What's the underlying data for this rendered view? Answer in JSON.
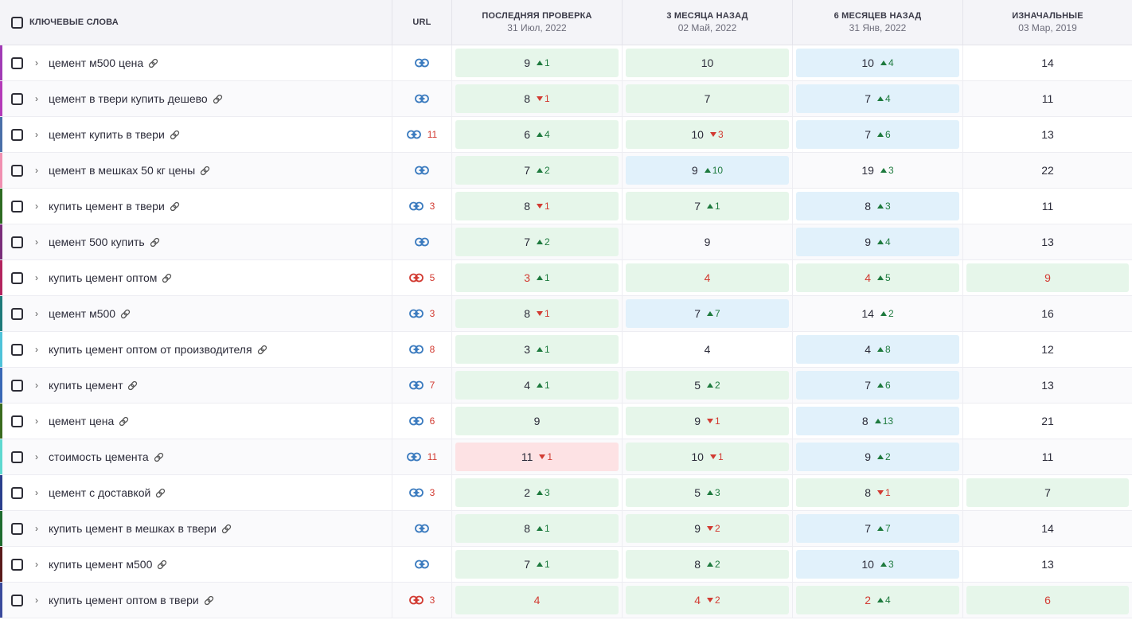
{
  "colors": {
    "green_bg": "#e6f6ea",
    "blue_bg": "#e1f1fb",
    "red_bg": "#fde2e4",
    "up": "#1e7a3e",
    "down": "#d23b32",
    "link_ok": "#3b7bbf",
    "link_broken": "#d23b32"
  },
  "header": {
    "keywords_label": "КЛЮЧЕВЫЕ СЛОВА",
    "url_label": "URL",
    "columns": [
      {
        "title": "ПОСЛЕДНЯЯ ПРОВЕРКА",
        "date": "31 Июл, 2022"
      },
      {
        "title": "3 МЕСЯЦА НАЗАД",
        "date": "02 Май, 2022"
      },
      {
        "title": "6 МЕСЯЦЕВ НАЗАД",
        "date": "31 Янв, 2022"
      },
      {
        "title": "ИЗНАЧАЛЬНЫЕ",
        "date": "03 Мар, 2019"
      }
    ]
  },
  "rows": [
    {
      "keyword": "цемент м500 цена",
      "stripe": "#a13bb5",
      "url_icon": "link-ok",
      "url_count": "",
      "cells": [
        {
          "value": "9",
          "dir": "up",
          "delta": "1",
          "bg": "green",
          "red": false
        },
        {
          "value": "10",
          "dir": "",
          "delta": "",
          "bg": "green",
          "red": false
        },
        {
          "value": "10",
          "dir": "up",
          "delta": "4",
          "bg": "blue",
          "red": false
        },
        {
          "value": "14",
          "dir": "",
          "delta": "",
          "bg": "",
          "red": false
        }
      ]
    },
    {
      "keyword": "цемент в твери купить дешево",
      "stripe": "#b43ab8",
      "url_icon": "link-ok",
      "url_count": "",
      "cells": [
        {
          "value": "8",
          "dir": "down",
          "delta": "1",
          "bg": "green",
          "red": false
        },
        {
          "value": "7",
          "dir": "",
          "delta": "",
          "bg": "green",
          "red": false
        },
        {
          "value": "7",
          "dir": "up",
          "delta": "4",
          "bg": "blue",
          "red": false
        },
        {
          "value": "11",
          "dir": "",
          "delta": "",
          "bg": "",
          "red": false
        }
      ]
    },
    {
      "keyword": "цемент купить в твери",
      "stripe": "#4a6fa8",
      "url_icon": "link-ok",
      "url_count": "11",
      "cells": [
        {
          "value": "6",
          "dir": "up",
          "delta": "4",
          "bg": "green",
          "red": false
        },
        {
          "value": "10",
          "dir": "down",
          "delta": "3",
          "bg": "green",
          "red": false
        },
        {
          "value": "7",
          "dir": "up",
          "delta": "6",
          "bg": "blue",
          "red": false
        },
        {
          "value": "13",
          "dir": "",
          "delta": "",
          "bg": "",
          "red": false
        }
      ]
    },
    {
      "keyword": "цемент в мешках 50 кг цены",
      "stripe": "#f08fb0",
      "url_icon": "link-ok",
      "url_count": "",
      "cells": [
        {
          "value": "7",
          "dir": "up",
          "delta": "2",
          "bg": "green",
          "red": false
        },
        {
          "value": "9",
          "dir": "up",
          "delta": "10",
          "bg": "blue",
          "red": false
        },
        {
          "value": "19",
          "dir": "up",
          "delta": "3",
          "bg": "",
          "red": false
        },
        {
          "value": "22",
          "dir": "",
          "delta": "",
          "bg": "",
          "red": false
        }
      ]
    },
    {
      "keyword": "купить цемент в твери",
      "stripe": "#2e6b22",
      "url_icon": "link-ok",
      "url_count": "3",
      "cells": [
        {
          "value": "8",
          "dir": "down",
          "delta": "1",
          "bg": "green",
          "red": false
        },
        {
          "value": "7",
          "dir": "up",
          "delta": "1",
          "bg": "green",
          "red": false
        },
        {
          "value": "8",
          "dir": "up",
          "delta": "3",
          "bg": "blue",
          "red": false
        },
        {
          "value": "11",
          "dir": "",
          "delta": "",
          "bg": "",
          "red": false
        }
      ]
    },
    {
      "keyword": "цемент 500 купить",
      "stripe": "#7a2d7a",
      "url_icon": "link-ok",
      "url_count": "",
      "cells": [
        {
          "value": "7",
          "dir": "up",
          "delta": "2",
          "bg": "green",
          "red": false
        },
        {
          "value": "9",
          "dir": "",
          "delta": "",
          "bg": "",
          "red": false
        },
        {
          "value": "9",
          "dir": "up",
          "delta": "4",
          "bg": "blue",
          "red": false
        },
        {
          "value": "13",
          "dir": "",
          "delta": "",
          "bg": "",
          "red": false
        }
      ]
    },
    {
      "keyword": "купить цемент оптом",
      "stripe": "#b3245e",
      "url_icon": "link-broken",
      "url_count": "5",
      "cells": [
        {
          "value": "3",
          "dir": "up",
          "delta": "1",
          "bg": "green",
          "red": true
        },
        {
          "value": "4",
          "dir": "",
          "delta": "",
          "bg": "green",
          "red": true
        },
        {
          "value": "4",
          "dir": "up",
          "delta": "5",
          "bg": "green",
          "red": true
        },
        {
          "value": "9",
          "dir": "",
          "delta": "",
          "bg": "green",
          "red": true
        }
      ]
    },
    {
      "keyword": "цемент м500",
      "stripe": "#1e7a7a",
      "url_icon": "link-ok",
      "url_count": "3",
      "cells": [
        {
          "value": "8",
          "dir": "down",
          "delta": "1",
          "bg": "green",
          "red": false
        },
        {
          "value": "7",
          "dir": "up",
          "delta": "7",
          "bg": "blue",
          "red": false
        },
        {
          "value": "14",
          "dir": "up",
          "delta": "2",
          "bg": "",
          "red": false
        },
        {
          "value": "16",
          "dir": "",
          "delta": "",
          "bg": "",
          "red": false
        }
      ]
    },
    {
      "keyword": "купить цемент оптом от производителя",
      "stripe": "#4fc3d9",
      "url_icon": "link-ok",
      "url_count": "8",
      "cells": [
        {
          "value": "3",
          "dir": "up",
          "delta": "1",
          "bg": "green",
          "red": false
        },
        {
          "value": "4",
          "dir": "",
          "delta": "",
          "bg": "",
          "red": false
        },
        {
          "value": "4",
          "dir": "up",
          "delta": "8",
          "bg": "blue",
          "red": false
        },
        {
          "value": "12",
          "dir": "",
          "delta": "",
          "bg": "",
          "red": false
        }
      ]
    },
    {
      "keyword": "купить цемент",
      "stripe": "#3a68b5",
      "url_icon": "link-ok",
      "url_count": "7",
      "cells": [
        {
          "value": "4",
          "dir": "up",
          "delta": "1",
          "bg": "green",
          "red": false
        },
        {
          "value": "5",
          "dir": "up",
          "delta": "2",
          "bg": "green",
          "red": false
        },
        {
          "value": "7",
          "dir": "up",
          "delta": "6",
          "bg": "blue",
          "red": false
        },
        {
          "value": "13",
          "dir": "",
          "delta": "",
          "bg": "",
          "red": false
        }
      ]
    },
    {
      "keyword": "цемент цена",
      "stripe": "#3a6b1e",
      "url_icon": "link-ok",
      "url_count": "6",
      "cells": [
        {
          "value": "9",
          "dir": "",
          "delta": "",
          "bg": "green",
          "red": false
        },
        {
          "value": "9",
          "dir": "down",
          "delta": "1",
          "bg": "green",
          "red": false
        },
        {
          "value": "8",
          "dir": "up",
          "delta": "13",
          "bg": "blue",
          "red": false
        },
        {
          "value": "21",
          "dir": "",
          "delta": "",
          "bg": "",
          "red": false
        }
      ]
    },
    {
      "keyword": "стоимость цемента",
      "stripe": "#5ed9d0",
      "url_icon": "link-ok",
      "url_count": "11",
      "cells": [
        {
          "value": "11",
          "dir": "down",
          "delta": "1",
          "bg": "red",
          "red": false
        },
        {
          "value": "10",
          "dir": "down",
          "delta": "1",
          "bg": "green",
          "red": false
        },
        {
          "value": "9",
          "dir": "up",
          "delta": "2",
          "bg": "blue",
          "red": false
        },
        {
          "value": "11",
          "dir": "",
          "delta": "",
          "bg": "",
          "red": false
        }
      ]
    },
    {
      "keyword": "цемент с доставкой",
      "stripe": "#2a3f8c",
      "url_icon": "link-ok",
      "url_count": "3",
      "cells": [
        {
          "value": "2",
          "dir": "up",
          "delta": "3",
          "bg": "green",
          "red": false
        },
        {
          "value": "5",
          "dir": "up",
          "delta": "3",
          "bg": "green",
          "red": false
        },
        {
          "value": "8",
          "dir": "down",
          "delta": "1",
          "bg": "green",
          "red": false
        },
        {
          "value": "7",
          "dir": "",
          "delta": "",
          "bg": "green",
          "red": false
        }
      ]
    },
    {
      "keyword": "купить цемент в мешках в твери",
      "stripe": "#1e6b2e",
      "url_icon": "link-ok",
      "url_count": "",
      "cells": [
        {
          "value": "8",
          "dir": "up",
          "delta": "1",
          "bg": "green",
          "red": false
        },
        {
          "value": "9",
          "dir": "down",
          "delta": "2",
          "bg": "green",
          "red": false
        },
        {
          "value": "7",
          "dir": "up",
          "delta": "7",
          "bg": "blue",
          "red": false
        },
        {
          "value": "14",
          "dir": "",
          "delta": "",
          "bg": "",
          "red": false
        }
      ]
    },
    {
      "keyword": "купить цемент м500",
      "stripe": "#5a1a1a",
      "url_icon": "link-ok",
      "url_count": "",
      "cells": [
        {
          "value": "7",
          "dir": "up",
          "delta": "1",
          "bg": "green",
          "red": false
        },
        {
          "value": "8",
          "dir": "up",
          "delta": "2",
          "bg": "green",
          "red": false
        },
        {
          "value": "10",
          "dir": "up",
          "delta": "3",
          "bg": "blue",
          "red": false
        },
        {
          "value": "13",
          "dir": "",
          "delta": "",
          "bg": "",
          "red": false
        }
      ]
    },
    {
      "keyword": "купить цемент оптом в твери",
      "stripe": "#3a4a9c",
      "url_icon": "link-broken",
      "url_count": "3",
      "cells": [
        {
          "value": "4",
          "dir": "",
          "delta": "",
          "bg": "green",
          "red": true
        },
        {
          "value": "4",
          "dir": "down",
          "delta": "2",
          "bg": "green",
          "red": true
        },
        {
          "value": "2",
          "dir": "up",
          "delta": "4",
          "bg": "green",
          "red": true
        },
        {
          "value": "6",
          "dir": "",
          "delta": "",
          "bg": "green",
          "red": true
        }
      ]
    }
  ]
}
